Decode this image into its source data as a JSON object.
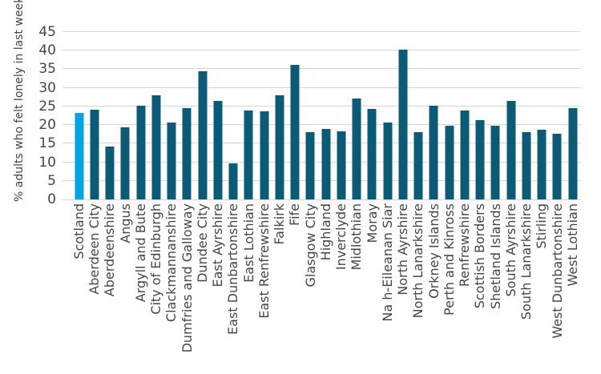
{
  "chart_data": {
    "type": "bar",
    "title": "",
    "xlabel": "",
    "ylabel": "% adults who felt lonely in last week",
    "ylim": [
      0,
      45
    ],
    "yticks": [
      0,
      5,
      10,
      15,
      20,
      25,
      30,
      35,
      40,
      45
    ],
    "grid": true,
    "legend": "none",
    "categories": [
      "Scotland",
      "Aberdeen City",
      "Aberdeenshire",
      "Angus",
      "Argyll and Bute",
      "City of Edinburgh",
      "Clackmannanshire",
      "Dumfries and Galloway",
      "Dundee City",
      "East Ayrshire",
      "East Dunbartonshire",
      "East Lothian",
      "East Renfrewshire",
      "Falkirk",
      "Fife",
      "Glasgow City",
      "Highland",
      "Inverclyde",
      "Midlothian",
      "Moray",
      "Na h-Eileanan Siar",
      "North Ayrshire",
      "North Lanarkshire",
      "Orkney Islands",
      "Perth and Kinross",
      "Renfrewshire",
      "Scottish Borders",
      "Shetland Islands",
      "South Ayrshire",
      "South Lanarkshire",
      "Stirling",
      "West Dunbartonshire",
      "West Lothian"
    ],
    "values": [
      23.3,
      24.2,
      14.2,
      19.4,
      25.2,
      28.0,
      20.7,
      24.6,
      34.4,
      26.4,
      9.8,
      23.8,
      23.7,
      27.9,
      36.2,
      18.1,
      19.0,
      18.3,
      27.2,
      24.4,
      20.6,
      40.2,
      18.1,
      25.3,
      19.8,
      24.0,
      21.4,
      19.9,
      26.4,
      18.1,
      18.8,
      17.7,
      24.5
    ],
    "highlight_index": 0,
    "colors": {
      "bar": "#0B5B76",
      "highlight_bar": "#00A3E4",
      "gridline": "#D8D8D8",
      "axis_text": "#454545"
    }
  }
}
